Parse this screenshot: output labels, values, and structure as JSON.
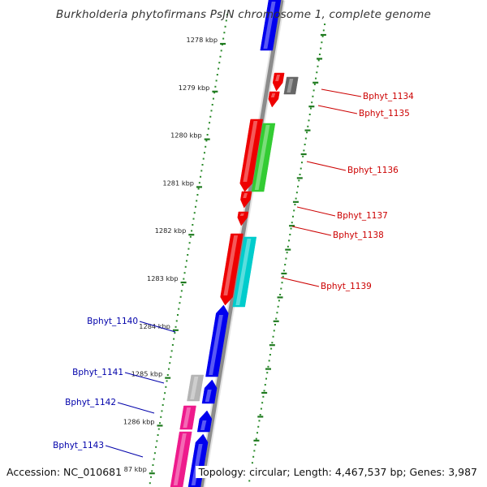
{
  "title": "Burkholderia phytofirmans PsJN chromosome 1, complete genome",
  "accession": "Accession: NC_010681",
  "summary": "Topology: circular; Length: 4,467,537 bp; Genes: 3,987",
  "colors": {
    "backbone": "#8c8c8c",
    "tick": "#1f7a1f",
    "dot": "#2a8a2a",
    "label_red": "#cc0000",
    "label_blue": "#0000aa",
    "gene_blue": "#0000ee",
    "gene_red": "#ee0000",
    "gene_gray": "#666666",
    "gene_lightgray": "#b4b4b4",
    "gene_green": "#33cc33",
    "gene_cyan": "#00cccc",
    "gene_pink": "#ee1a8c"
  },
  "scale_labels": [
    "1278 kbp",
    "1279 kbp",
    "1280 kbp",
    "1281 kbp",
    "1282 kbp",
    "1283 kbp",
    "1284 kbp",
    "1285 kbp",
    "1286 kbp",
    "1287 kbp"
  ],
  "genes": [
    {
      "name": "",
      "color": "gene_blue"
    },
    {
      "name": "Bphyt_1134",
      "color": "gene_red"
    },
    {
      "name": "",
      "color": "gene_gray"
    },
    {
      "name": "Bphyt_1135",
      "color": "gene_red"
    },
    {
      "name": "Bphyt_1136",
      "color": "gene_red"
    },
    {
      "name": "",
      "color": "gene_green"
    },
    {
      "name": "Bphyt_1137",
      "color": "gene_red"
    },
    {
      "name": "Bphyt_1138",
      "color": "gene_red"
    },
    {
      "name": "Bphyt_1139",
      "color": "gene_red"
    },
    {
      "name": "",
      "color": "gene_cyan"
    },
    {
      "name": "Bphyt_1140",
      "color": "gene_blue"
    },
    {
      "name": "Bphyt_1141",
      "color": "gene_blue"
    },
    {
      "name": "",
      "color": "gene_lightgray"
    },
    {
      "name": "Bphyt_1142",
      "color": "gene_blue"
    },
    {
      "name": "",
      "color": "gene_pink"
    },
    {
      "name": "Bphyt_1143",
      "color": "gene_blue"
    },
    {
      "name": "",
      "color": "gene_pink"
    }
  ]
}
